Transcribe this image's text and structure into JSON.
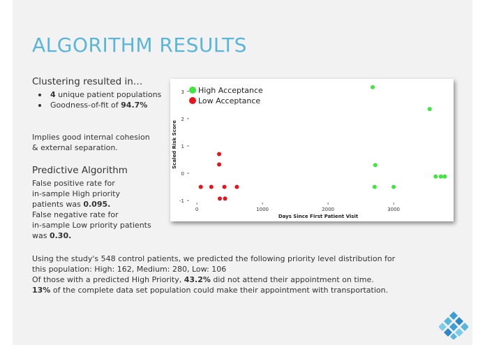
{
  "slide": {
    "title": "ALGORITHM RESULTS",
    "clustering_heading": "Clustering resulted in…",
    "bullets": [
      {
        "value": "4",
        "text": " unique patient populations"
      },
      {
        "prefix": "Goodness-of-fit of ",
        "value": "94.7%"
      }
    ],
    "cohesion_line1": "Implies good internal cohesion",
    "cohesion_line2": "& external separation.",
    "predictive_heading": "Predictive Algorithm",
    "fp_line1": "False positive rate for",
    "fp_line2": "in-sample High priority",
    "fp_prefix": "patients was ",
    "fp_value": "0.095.",
    "fn_line1": "False negative rate for",
    "fn_line2": "in-sample Low priority patients",
    "fn_prefix": "was ",
    "fn_value": "0.30.",
    "summary_line1": "Using the study's 548 control patients, we predicted the following priority level distribution for",
    "summary_line2": "this population: High: 162,  Medium: 280, Low: 106",
    "summary_line3_prefix": "Of those with a predicted High Priority, ",
    "summary_line3_value": "43.2%",
    "summary_line3_suffix": " did not attend their appointment on time.",
    "summary_line4_value": "13%",
    "summary_line4_suffix": " of the complete data set population could make their appointment with transportation."
  },
  "colors": {
    "title": "#5ab6d8",
    "high": "#3ee63e",
    "low": "#e8141c"
  },
  "logo_icon": "diamond-cluster-logo",
  "chart_data": {
    "type": "scatter",
    "xlabel": "Days Since First Patient Visit",
    "ylabel": "Scaled Risk Score",
    "xlim": [
      -150,
      3850
    ],
    "ylim": [
      -1.15,
      3.25
    ],
    "xticks": [
      0,
      1000,
      2000,
      3000
    ],
    "yticks": [
      -1,
      0,
      1,
      2,
      3
    ],
    "legend_position": "top-left",
    "series": [
      {
        "name": "High Acceptance",
        "color": "#3ee63e",
        "points": [
          [
            2680,
            3.15
          ],
          [
            2720,
            0.3
          ],
          [
            2710,
            -0.5
          ],
          [
            3000,
            -0.5
          ],
          [
            3550,
            2.35
          ],
          [
            3640,
            -0.12
          ],
          [
            3720,
            -0.12
          ],
          [
            3780,
            -0.12
          ]
        ]
      },
      {
        "name": "Low Acceptance",
        "color": "#e8141c",
        "points": [
          [
            60,
            -0.5
          ],
          [
            220,
            -0.5
          ],
          [
            340,
            0.7
          ],
          [
            340,
            0.32
          ],
          [
            350,
            -0.93
          ],
          [
            420,
            -0.5
          ],
          [
            430,
            -0.93
          ],
          [
            610,
            -0.5
          ]
        ]
      }
    ]
  }
}
